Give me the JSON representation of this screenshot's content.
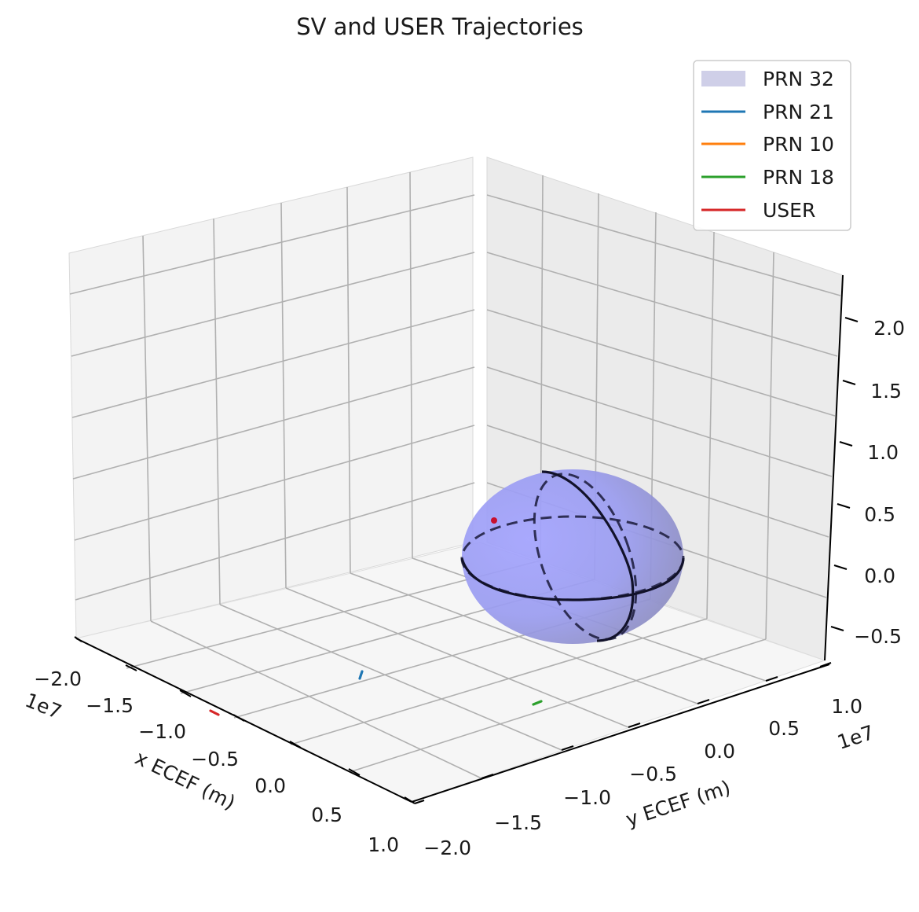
{
  "chart_data": {
    "type": "3d-line",
    "title": "SV and USER Trajectories",
    "xlabel": "x ECEF (m)",
    "ylabel": "y ECEF (m)",
    "x_offset_label": "1e7",
    "y_offset_label": "1e7",
    "x_ticks": [
      "−2.0",
      "−1.5",
      "−1.0",
      "−0.5",
      "0.0",
      "0.5",
      "1.0"
    ],
    "y_ticks": [
      "−2.0",
      "−1.5",
      "−1.0",
      "−0.5",
      "0.0",
      "0.5",
      "1.0"
    ],
    "z_ticks": [
      "−0.5",
      "0.0",
      "0.5",
      "1.0",
      "1.5",
      "2.0"
    ],
    "xlim": [
      -2.0,
      1.0
    ],
    "ylim": [
      -2.0,
      1.0
    ],
    "zlim": [
      -0.7,
      2.3
    ],
    "units_scale": 10000000.0,
    "grid": true,
    "legend_position": "top-right",
    "colors": {
      "PRN 32": "#cfcfe8",
      "PRN 21": "#1f77b4",
      "PRN 10": "#ff7f0e",
      "PRN 18": "#2ca02c",
      "USER": "#d62728",
      "earth": "#8c8cf5",
      "earth_outline": "#1a1a3a"
    },
    "legend": [
      {
        "label": "PRN 32",
        "kind": "patch"
      },
      {
        "label": "PRN 21",
        "kind": "line"
      },
      {
        "label": "PRN 10",
        "kind": "line"
      },
      {
        "label": "PRN 18",
        "kind": "line"
      },
      {
        "label": "USER",
        "kind": "line"
      }
    ],
    "objects": [
      {
        "name": "earth",
        "shape": "sphere",
        "center": [
          0,
          0,
          0
        ],
        "radius": 0.6371
      }
    ]
  }
}
